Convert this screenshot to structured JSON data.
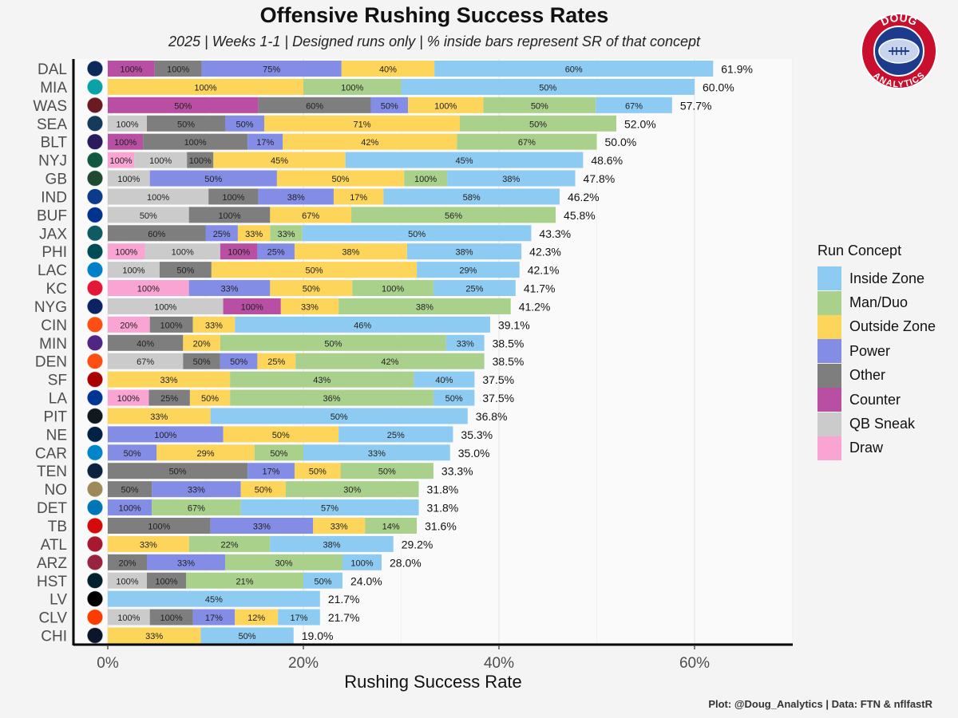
{
  "chart_data": {
    "type": "bar",
    "orientation": "horizontal",
    "stacked": true,
    "title": "Offensive Rushing Success Rates",
    "subtitle": "2025 | Weeks 1-1 | Designed runs only | % inside bars represent SR of that concept",
    "xlabel": "Rushing Success Rate",
    "ylabel": "",
    "xlim": [
      -3,
      70
    ],
    "xticks": [
      0,
      20,
      40,
      60
    ],
    "xtick_labels": [
      "0%",
      "20%",
      "40%",
      "60%"
    ],
    "legend_title": "Run Concept",
    "legend_position": "right",
    "concepts": [
      {
        "name": "Inside Zone",
        "color": "#8ecbf2"
      },
      {
        "name": "Man/Duo",
        "color": "#aad18c"
      },
      {
        "name": "Outside Zone",
        "color": "#fdd55a"
      },
      {
        "name": "Power",
        "color": "#838de6"
      },
      {
        "name": "Other",
        "color": "#7e7e7e"
      },
      {
        "name": "Counter",
        "color": "#b84fa3"
      },
      {
        "name": "QB Sneak",
        "color": "#cbcbcb"
      },
      {
        "name": "Draw",
        "color": "#f9a4d3"
      }
    ],
    "teams": [
      {
        "team": "DAL",
        "total": 61.9,
        "total_label": "61.9%",
        "logo_color": "#0b2a5b",
        "segments": [
          {
            "c": "Counter",
            "w": 4.8,
            "l": "100%"
          },
          {
            "c": "Other",
            "w": 4.8,
            "l": "100%"
          },
          {
            "c": "Power",
            "w": 14.3,
            "l": "75%"
          },
          {
            "c": "Outside Zone",
            "w": 9.5,
            "l": "40%"
          },
          {
            "c": "Inside Zone",
            "w": 28.5,
            "l": "60%"
          }
        ]
      },
      {
        "team": "MIA",
        "total": 60.0,
        "total_label": "60.0%",
        "logo_color": "#0aa2a8",
        "segments": [
          {
            "c": "Outside Zone",
            "w": 20,
            "l": "100%"
          },
          {
            "c": "Man/Duo",
            "w": 10,
            "l": "100%"
          },
          {
            "c": "Inside Zone",
            "w": 30,
            "l": "50%"
          }
        ]
      },
      {
        "team": "WAS",
        "total": 57.7,
        "total_label": "57.7%",
        "logo_color": "#6b1a22",
        "segments": [
          {
            "c": "Counter",
            "w": 15.4,
            "l": "50%"
          },
          {
            "c": "Other",
            "w": 11.5,
            "l": "60%"
          },
          {
            "c": "Power",
            "w": 3.8,
            "l": "50%"
          },
          {
            "c": "Outside Zone",
            "w": 7.7,
            "l": "100%"
          },
          {
            "c": "Man/Duo",
            "w": 11.5,
            "l": "50%"
          },
          {
            "c": "Inside Zone",
            "w": 7.8,
            "l": "67%"
          }
        ]
      },
      {
        "team": "SEA",
        "total": 52.0,
        "total_label": "52.0%",
        "logo_color": "#143a5c",
        "segments": [
          {
            "c": "QB Sneak",
            "w": 4,
            "l": "100%"
          },
          {
            "c": "Other",
            "w": 8,
            "l": "50%"
          },
          {
            "c": "Power",
            "w": 4,
            "l": "50%"
          },
          {
            "c": "Outside Zone",
            "w": 20,
            "l": "71%"
          },
          {
            "c": "Man/Duo",
            "w": 16,
            "l": "50%"
          }
        ]
      },
      {
        "team": "BLT",
        "total": 50.0,
        "total_label": "50.0%",
        "logo_color": "#2a1a5e",
        "segments": [
          {
            "c": "Counter",
            "w": 3.6,
            "l": "100%"
          },
          {
            "c": "Other",
            "w": 10.7,
            "l": "100%"
          },
          {
            "c": "Power",
            "w": 3.6,
            "l": "17%"
          },
          {
            "c": "Outside Zone",
            "w": 17.8,
            "l": "42%"
          },
          {
            "c": "Man/Duo",
            "w": 14.3,
            "l": "67%"
          }
        ]
      },
      {
        "team": "NYJ",
        "total": 48.6,
        "total_label": "48.6%",
        "logo_color": "#125740",
        "segments": [
          {
            "c": "Draw",
            "w": 2.7,
            "l": "100%"
          },
          {
            "c": "QB Sneak",
            "w": 5.4,
            "l": "100%"
          },
          {
            "c": "Other",
            "w": 2.7,
            "l": "100%"
          },
          {
            "c": "Outside Zone",
            "w": 13.5,
            "l": "45%"
          },
          {
            "c": "Inside Zone",
            "w": 24.3,
            "l": "45%"
          }
        ]
      },
      {
        "team": "GB",
        "total": 47.8,
        "total_label": "47.8%",
        "logo_color": "#1f4a2f",
        "segments": [
          {
            "c": "QB Sneak",
            "w": 4.3,
            "l": "100%"
          },
          {
            "c": "Power",
            "w": 13,
            "l": "50%"
          },
          {
            "c": "Outside Zone",
            "w": 13,
            "l": "50%"
          },
          {
            "c": "Man/Duo",
            "w": 4.4,
            "l": "100%"
          },
          {
            "c": "Inside Zone",
            "w": 13.1,
            "l": "38%"
          }
        ]
      },
      {
        "team": "IND",
        "total": 46.2,
        "total_label": "46.2%",
        "logo_color": "#0b3b8c",
        "segments": [
          {
            "c": "QB Sneak",
            "w": 10.3,
            "l": "100%"
          },
          {
            "c": "Other",
            "w": 5.1,
            "l": "100%"
          },
          {
            "c": "Power",
            "w": 7.7,
            "l": "38%"
          },
          {
            "c": "Outside Zone",
            "w": 5.1,
            "l": "17%"
          },
          {
            "c": "Inside Zone",
            "w": 18,
            "l": "58%"
          }
        ]
      },
      {
        "team": "BUF",
        "total": 45.8,
        "total_label": "45.8%",
        "logo_color": "#00338d",
        "segments": [
          {
            "c": "QB Sneak",
            "w": 8.3,
            "l": "50%"
          },
          {
            "c": "Other",
            "w": 8.3,
            "l": "100%"
          },
          {
            "c": "Outside Zone",
            "w": 8.3,
            "l": "67%"
          },
          {
            "c": "Man/Duo",
            "w": 20.9,
            "l": "56%"
          }
        ]
      },
      {
        "team": "JAX",
        "total": 43.3,
        "total_label": "43.3%",
        "logo_color": "#0f5a63",
        "segments": [
          {
            "c": "Other",
            "w": 10,
            "l": "60%"
          },
          {
            "c": "Power",
            "w": 3.3,
            "l": "25%"
          },
          {
            "c": "Outside Zone",
            "w": 3.3,
            "l": "33%"
          },
          {
            "c": "Man/Duo",
            "w": 3.3,
            "l": "33%"
          },
          {
            "c": "Inside Zone",
            "w": 23.4,
            "l": "50%"
          }
        ]
      },
      {
        "team": "PHI",
        "total": 42.3,
        "total_label": "42.3%",
        "logo_color": "#004c54",
        "segments": [
          {
            "c": "Draw",
            "w": 3.8,
            "l": "100%"
          },
          {
            "c": "QB Sneak",
            "w": 7.7,
            "l": "100%"
          },
          {
            "c": "Counter",
            "w": 3.8,
            "l": "100%"
          },
          {
            "c": "Power",
            "w": 3.8,
            "l": "25%"
          },
          {
            "c": "Outside Zone",
            "w": 11.5,
            "l": "38%"
          },
          {
            "c": "Inside Zone",
            "w": 11.7,
            "l": "38%"
          }
        ]
      },
      {
        "team": "LAC",
        "total": 42.1,
        "total_label": "42.1%",
        "logo_color": "#0080c6",
        "segments": [
          {
            "c": "QB Sneak",
            "w": 5.3,
            "l": "100%"
          },
          {
            "c": "Other",
            "w": 5.3,
            "l": "50%"
          },
          {
            "c": "Outside Zone",
            "w": 21,
            "l": "50%"
          },
          {
            "c": "Inside Zone",
            "w": 10.5,
            "l": "29%"
          }
        ]
      },
      {
        "team": "KC",
        "total": 41.7,
        "total_label": "41.7%",
        "logo_color": "#e31837",
        "segments": [
          {
            "c": "Draw",
            "w": 8.3,
            "l": "100%"
          },
          {
            "c": "Power",
            "w": 8.3,
            "l": "33%"
          },
          {
            "c": "Outside Zone",
            "w": 8.4,
            "l": "50%"
          },
          {
            "c": "Man/Duo",
            "w": 8.3,
            "l": "100%"
          },
          {
            "c": "Inside Zone",
            "w": 8.4,
            "l": "25%"
          }
        ]
      },
      {
        "team": "NYG",
        "total": 41.2,
        "total_label": "41.2%",
        "logo_color": "#0b2265",
        "segments": [
          {
            "c": "QB Sneak",
            "w": 11.8,
            "l": "100%"
          },
          {
            "c": "Counter",
            "w": 5.9,
            "l": "100%"
          },
          {
            "c": "Outside Zone",
            "w": 5.9,
            "l": "33%"
          },
          {
            "c": "Man/Duo",
            "w": 17.6,
            "l": "38%"
          }
        ]
      },
      {
        "team": "CIN",
        "total": 39.1,
        "total_label": "39.1%",
        "logo_color": "#fb4f14",
        "segments": [
          {
            "c": "Draw",
            "w": 4.3,
            "l": "20%"
          },
          {
            "c": "Other",
            "w": 4.4,
            "l": "100%"
          },
          {
            "c": "Outside Zone",
            "w": 4.3,
            "l": "33%"
          },
          {
            "c": "Inside Zone",
            "w": 26.1,
            "l": "46%"
          }
        ]
      },
      {
        "team": "MIN",
        "total": 38.5,
        "total_label": "38.5%",
        "logo_color": "#4f2683",
        "segments": [
          {
            "c": "Other",
            "w": 7.7,
            "l": "40%"
          },
          {
            "c": "Outside Zone",
            "w": 3.8,
            "l": "20%"
          },
          {
            "c": "Man/Duo",
            "w": 23.1,
            "l": "50%"
          },
          {
            "c": "Inside Zone",
            "w": 3.9,
            "l": "33%"
          }
        ]
      },
      {
        "team": "DEN",
        "total": 38.5,
        "total_label": "38.5%",
        "logo_color": "#fb4f14",
        "segments": [
          {
            "c": "QB Sneak",
            "w": 7.7,
            "l": "67%"
          },
          {
            "c": "Other",
            "w": 3.8,
            "l": "50%"
          },
          {
            "c": "Power",
            "w": 3.8,
            "l": "50%"
          },
          {
            "c": "Outside Zone",
            "w": 3.9,
            "l": "25%"
          },
          {
            "c": "Man/Duo",
            "w": 19.3,
            "l": "42%"
          }
        ]
      },
      {
        "team": "SF",
        "total": 37.5,
        "total_label": "37.5%",
        "logo_color": "#aa0000",
        "segments": [
          {
            "c": "Outside Zone",
            "w": 12.5,
            "l": "33%"
          },
          {
            "c": "Man/Duo",
            "w": 18.8,
            "l": "43%"
          },
          {
            "c": "Inside Zone",
            "w": 6.2,
            "l": "40%"
          }
        ]
      },
      {
        "team": "LA",
        "total": 37.5,
        "total_label": "37.5%",
        "logo_color": "#003594",
        "segments": [
          {
            "c": "Draw",
            "w": 4.2,
            "l": "100%"
          },
          {
            "c": "Other",
            "w": 4.2,
            "l": "25%"
          },
          {
            "c": "Outside Zone",
            "w": 4.1,
            "l": "50%"
          },
          {
            "c": "Man/Duo",
            "w": 20.8,
            "l": "36%"
          },
          {
            "c": "Inside Zone",
            "w": 4.2,
            "l": "50%"
          }
        ]
      },
      {
        "team": "PIT",
        "total": 36.8,
        "total_label": "36.8%",
        "logo_color": "#101820",
        "segments": [
          {
            "c": "Outside Zone",
            "w": 10.5,
            "l": "33%"
          },
          {
            "c": "Inside Zone",
            "w": 26.3,
            "l": "50%"
          }
        ]
      },
      {
        "team": "NE",
        "total": 35.3,
        "total_label": "35.3%",
        "logo_color": "#002244",
        "segments": [
          {
            "c": "Power",
            "w": 11.8,
            "l": "100%"
          },
          {
            "c": "Outside Zone",
            "w": 11.8,
            "l": "50%"
          },
          {
            "c": "Inside Zone",
            "w": 11.7,
            "l": "25%"
          }
        ]
      },
      {
        "team": "CAR",
        "total": 35.0,
        "total_label": "35.0%",
        "logo_color": "#0085ca",
        "segments": [
          {
            "c": "Power",
            "w": 5,
            "l": "50%"
          },
          {
            "c": "Outside Zone",
            "w": 10,
            "l": "29%"
          },
          {
            "c": "Man/Duo",
            "w": 5,
            "l": "50%"
          },
          {
            "c": "Inside Zone",
            "w": 15,
            "l": "33%"
          }
        ]
      },
      {
        "team": "TEN",
        "total": 33.3,
        "total_label": "33.3%",
        "logo_color": "#0c2340",
        "segments": [
          {
            "c": "Other",
            "w": 14.3,
            "l": "50%"
          },
          {
            "c": "Power",
            "w": 4.8,
            "l": "17%"
          },
          {
            "c": "Outside Zone",
            "w": 4.7,
            "l": "50%"
          },
          {
            "c": "Man/Duo",
            "w": 9.5,
            "l": "50%"
          }
        ]
      },
      {
        "team": "NO",
        "total": 31.8,
        "total_label": "31.8%",
        "logo_color": "#9f8958",
        "segments": [
          {
            "c": "Other",
            "w": 4.5,
            "l": "50%"
          },
          {
            "c": "Power",
            "w": 9.1,
            "l": "33%"
          },
          {
            "c": "Outside Zone",
            "w": 4.6,
            "l": "50%"
          },
          {
            "c": "Man/Duo",
            "w": 13.6,
            "l": "30%"
          }
        ]
      },
      {
        "team": "DET",
        "total": 31.8,
        "total_label": "31.8%",
        "logo_color": "#0076b6",
        "segments": [
          {
            "c": "Power",
            "w": 4.5,
            "l": "100%"
          },
          {
            "c": "Man/Duo",
            "w": 9.1,
            "l": "67%"
          },
          {
            "c": "Inside Zone",
            "w": 18.2,
            "l": "57%"
          }
        ]
      },
      {
        "team": "TB",
        "total": 31.6,
        "total_label": "31.6%",
        "logo_color": "#d50a0a",
        "segments": [
          {
            "c": "Other",
            "w": 10.5,
            "l": "100%"
          },
          {
            "c": "Power",
            "w": 10.5,
            "l": "33%"
          },
          {
            "c": "Outside Zone",
            "w": 5.3,
            "l": "33%"
          },
          {
            "c": "Man/Duo",
            "w": 5.3,
            "l": "14%"
          }
        ]
      },
      {
        "team": "ATL",
        "total": 29.2,
        "total_label": "29.2%",
        "logo_color": "#a71930",
        "segments": [
          {
            "c": "Outside Zone",
            "w": 8.3,
            "l": "33%"
          },
          {
            "c": "Man/Duo",
            "w": 8.3,
            "l": "22%"
          },
          {
            "c": "Inside Zone",
            "w": 12.6,
            "l": "38%"
          }
        ]
      },
      {
        "team": "ARZ",
        "total": 28.0,
        "total_label": "28.0%",
        "logo_color": "#97233f",
        "segments": [
          {
            "c": "Other",
            "w": 4,
            "l": "20%"
          },
          {
            "c": "Power",
            "w": 8,
            "l": "33%"
          },
          {
            "c": "Man/Duo",
            "w": 12,
            "l": "30%"
          },
          {
            "c": "Inside Zone",
            "w": 4,
            "l": "100%"
          }
        ]
      },
      {
        "team": "HST",
        "total": 24.0,
        "total_label": "24.0%",
        "logo_color": "#03202f",
        "segments": [
          {
            "c": "QB Sneak",
            "w": 4,
            "l": "100%"
          },
          {
            "c": "Other",
            "w": 4,
            "l": "100%"
          },
          {
            "c": "Man/Duo",
            "w": 12,
            "l": "21%"
          },
          {
            "c": "Inside Zone",
            "w": 4,
            "l": "50%"
          }
        ]
      },
      {
        "team": "LV",
        "total": 21.7,
        "total_label": "21.7%",
        "logo_color": "#000000",
        "segments": [
          {
            "c": "Inside Zone",
            "w": 21.7,
            "l": "45%"
          }
        ]
      },
      {
        "team": "CLV",
        "total": 21.7,
        "total_label": "21.7%",
        "logo_color": "#ff3c00",
        "segments": [
          {
            "c": "QB Sneak",
            "w": 4.3,
            "l": "100%"
          },
          {
            "c": "Other",
            "w": 4.4,
            "l": "100%"
          },
          {
            "c": "Power",
            "w": 4.3,
            "l": "17%"
          },
          {
            "c": "Outside Zone",
            "w": 4.4,
            "l": "12%"
          },
          {
            "c": "Inside Zone",
            "w": 4.3,
            "l": "17%"
          }
        ]
      },
      {
        "team": "CHI",
        "total": 19.0,
        "total_label": "19.0%",
        "logo_color": "#0b162a",
        "segments": [
          {
            "c": "Outside Zone",
            "w": 9.5,
            "l": "33%"
          },
          {
            "c": "Inside Zone",
            "w": 9.5,
            "l": "50%"
          }
        ]
      }
    ]
  },
  "logo": {
    "line1": "DOUG",
    "line2": "ANALYTICS",
    "ring_color": "#c8102e",
    "inner_color": "#1d3b8c"
  },
  "caption": "Plot: @Doug_Analytics   |    Data: FTN & nflfastR"
}
